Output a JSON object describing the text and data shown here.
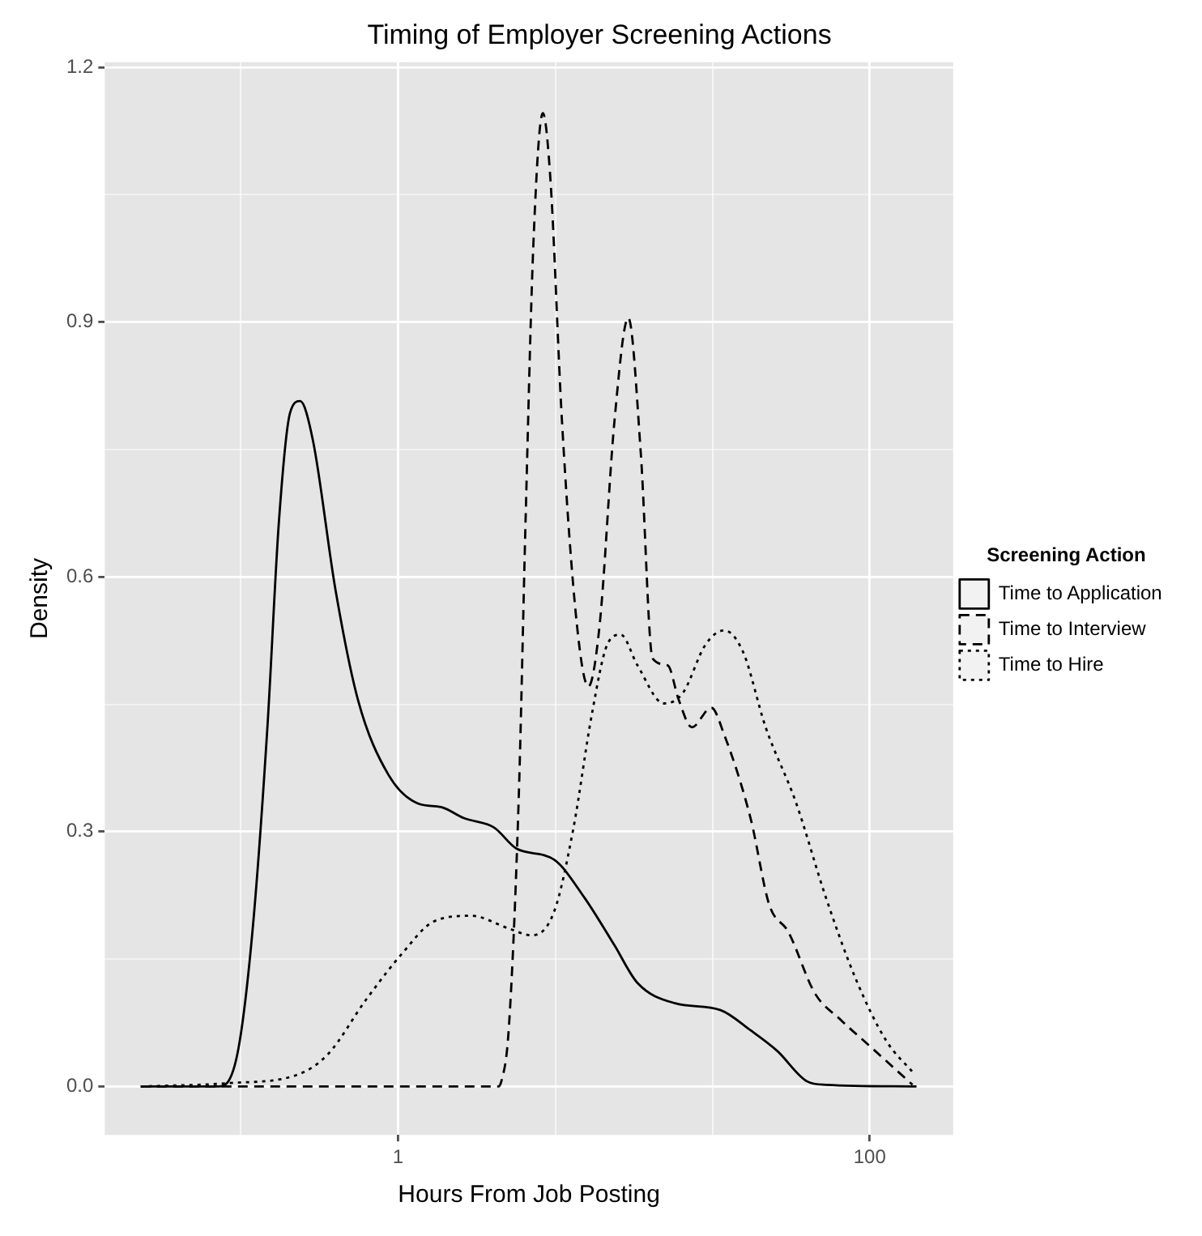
{
  "chart_data": {
    "type": "line",
    "title": "Timing of Employer Screening Actions",
    "xlabel": "Hours From Job Posting",
    "ylabel": "Density",
    "legend_title": "Screening Action",
    "log": "x",
    "xlim": [
      0.057,
      226
    ],
    "xticks": [
      {
        "value": 0.2154,
        "label": null
      },
      1,
      {
        "value": 4.642,
        "label": null
      },
      {
        "value": 21.54,
        "label": null
      },
      100
    ],
    "ylim": [
      -0.057,
      1.206
    ],
    "yticks": [
      {
        "value": 0,
        "label": "0.0"
      },
      {
        "value": 0.15,
        "label": null
      },
      0.3,
      {
        "value": 0.45,
        "label": null
      },
      0.6,
      {
        "value": 0.75,
        "label": null
      },
      0.9,
      {
        "value": 1.05,
        "label": null
      },
      1.2
    ],
    "grid": true,
    "legend": "right",
    "series": [
      {
        "name": "Time to Application",
        "color": "#000000",
        "line_style": "solid",
        "x": [
          0.081,
          0.173,
          0.208,
          0.241,
          0.279,
          0.312,
          0.348,
          0.384,
          0.435,
          0.543,
          0.676,
          0.91,
          1.22,
          1.52,
          1.9,
          2.55,
          3.18,
          4.59,
          6.18,
          8.28,
          10.35,
          14.96,
          23.3,
          31.3,
          40.5,
          54.3,
          65.3,
          158
        ],
        "values": [
          0,
          0,
          0.038,
          0.182,
          0.423,
          0.664,
          0.793,
          0.807,
          0.761,
          0.584,
          0.455,
          0.367,
          0.333,
          0.329,
          0.316,
          0.305,
          0.28,
          0.267,
          0.222,
          0.166,
          0.122,
          0.098,
          0.09,
          0.066,
          0.042,
          0.006,
          0.002,
          0
        ]
      },
      {
        "name": "Time to Interview",
        "color": "#000000",
        "line_style": "dashed",
        "x": [
          0.081,
          2.64,
          2.74,
          2.95,
          3.25,
          3.47,
          3.74,
          4.11,
          4.43,
          4.95,
          5.73,
          6.41,
          7.16,
          8.28,
          9.47,
          10.7,
          12.0,
          13.9,
          15.5,
          17.6,
          21.3,
          24.1,
          31.3,
          37.5,
          45.2,
          58.5,
          75.7,
          101.6,
          152
        ],
        "values": [
          0,
          0,
          0.006,
          0.07,
          0.343,
          0.664,
          0.986,
          1.146,
          1.066,
          0.785,
          0.544,
          0.471,
          0.544,
          0.785,
          0.905,
          0.745,
          0.504,
          0.496,
          0.455,
          0.423,
          0.446,
          0.415,
          0.315,
          0.214,
          0.182,
          0.11,
          0.078,
          0.046,
          0.002
        ]
      },
      {
        "name": "Time to Hire",
        "color": "#000000",
        "line_style": "dotted",
        "x": [
          0.081,
          0.193,
          0.375,
          0.504,
          0.73,
          1.05,
          1.41,
          2.04,
          2.95,
          3.69,
          4.59,
          5.53,
          6.64,
          7.7,
          8.79,
          10.35,
          13.4,
          16.1,
          20.1,
          24.1,
          29.0,
          36.2,
          48.6,
          65.3,
          87.5,
          117.5,
          155.6
        ],
        "values": [
          0,
          0.004,
          0.014,
          0.038,
          0.102,
          0.158,
          0.194,
          0.201,
          0.186,
          0.178,
          0.206,
          0.303,
          0.439,
          0.52,
          0.532,
          0.496,
          0.451,
          0.463,
          0.52,
          0.537,
          0.512,
          0.423,
          0.335,
          0.222,
          0.126,
          0.054,
          0.014
        ]
      }
    ]
  }
}
